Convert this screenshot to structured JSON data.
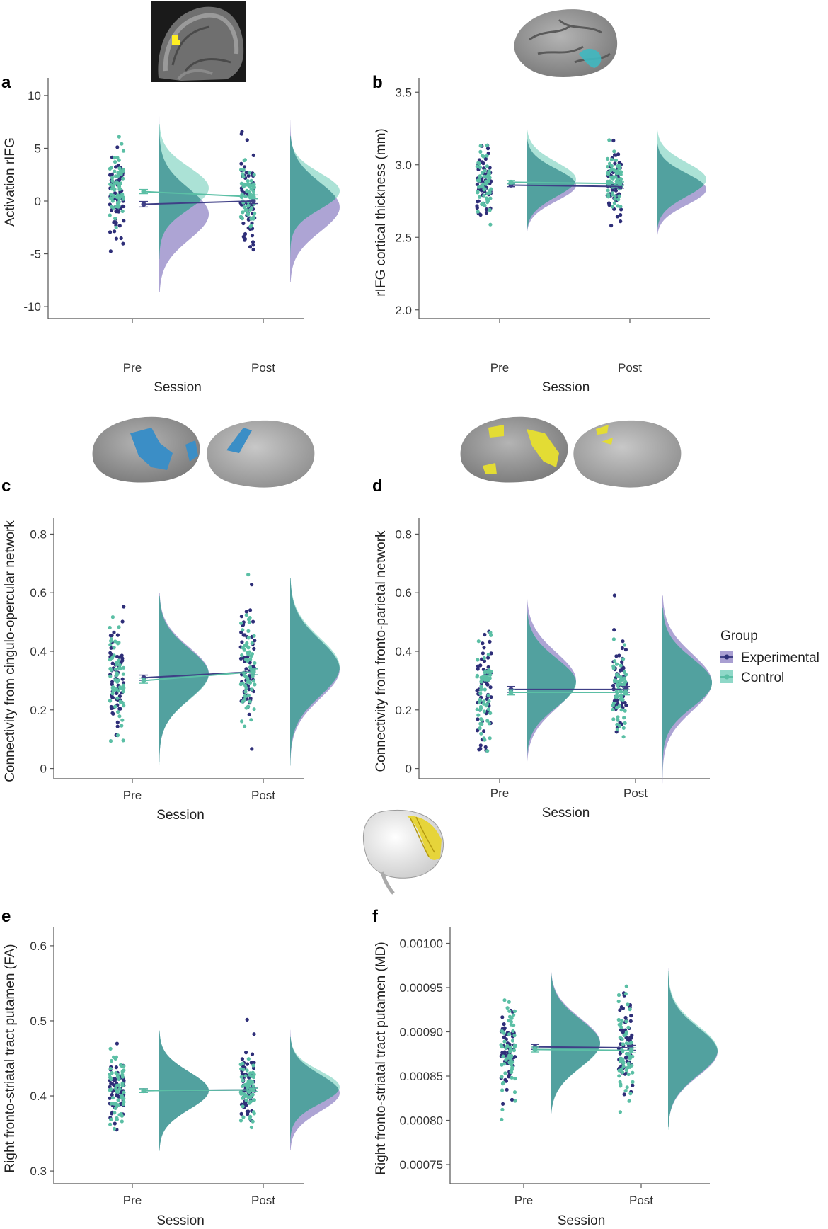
{
  "figure": {
    "legend": {
      "title": "Group",
      "entries": [
        {
          "label": "Experimental",
          "color": "#3f3f86"
        },
        {
          "label": "Control",
          "color": "#5bbfa5"
        }
      ],
      "placement": "right"
    },
    "colors": {
      "experimental_point": "#2e2e78",
      "experimental_fill": "#a99fd2",
      "control_point": "#5bbfa5",
      "control_fill": "#8fd8c8",
      "overlap_fill": "#4e9e9c",
      "axis": "#555555"
    },
    "brain_images": [
      {
        "name": "mri-sagittal-rIFG-activation",
        "panel": "a"
      },
      {
        "name": "cortical-surface-rIFG-region",
        "panel": "b"
      },
      {
        "name": "cingulo-opercular-network-surface",
        "panel": "c"
      },
      {
        "name": "fronto-parietal-network-surface",
        "panel": "d"
      },
      {
        "name": "fronto-striatal-tract-3d",
        "panel": "e-f"
      }
    ]
  },
  "chart_data": [
    {
      "panel": "a",
      "type": "scatter",
      "title": "",
      "xlabel": "Session",
      "ylabel": "Activation rIFG",
      "categories": [
        "Pre",
        "Post"
      ],
      "ylim": [
        -11,
        11
      ],
      "yticks": [
        -10,
        -5,
        0,
        5,
        10
      ],
      "ytick_labels": [
        "-10",
        "-5",
        "0",
        "5",
        "10"
      ],
      "series": [
        {
          "name": "Experimental",
          "means": [
            -0.3,
            0.0
          ],
          "sd": [
            2.6,
            2.4
          ],
          "skew": [
            -0.5,
            -0.3
          ]
        },
        {
          "name": "Control",
          "means": [
            0.9,
            0.4
          ],
          "sd": [
            2.0,
            1.8
          ],
          "skew": [
            0.2,
            0.4
          ]
        }
      ],
      "grid": false
    },
    {
      "panel": "b",
      "type": "scatter",
      "title": "",
      "xlabel": "Session",
      "ylabel": "rIFG cortical thickness (mm)",
      "categories": [
        "Pre",
        "Post"
      ],
      "ylim": [
        1.95,
        3.55
      ],
      "yticks": [
        2.0,
        2.5,
        3.0,
        3.5
      ],
      "ytick_labels": [
        "2.0",
        "2.5",
        "3.0",
        "3.5"
      ],
      "series": [
        {
          "name": "Experimental",
          "means": [
            2.86,
            2.85
          ],
          "sd": [
            0.11,
            0.11
          ],
          "skew": [
            0.0,
            -0.2
          ]
        },
        {
          "name": "Control",
          "means": [
            2.88,
            2.87
          ],
          "sd": [
            0.12,
            0.12
          ],
          "skew": [
            0.2,
            0.3
          ]
        }
      ],
      "grid": false
    },
    {
      "panel": "c",
      "type": "scatter",
      "title": "",
      "xlabel": "Session",
      "ylabel": "Connectivity from cingulo-opercular network",
      "categories": [
        "Pre",
        "Post"
      ],
      "ylim": [
        -0.03,
        0.83
      ],
      "yticks": [
        0,
        0.2,
        0.4,
        0.6,
        0.8
      ],
      "ytick_labels": [
        "0",
        "0.2",
        "0.4",
        "0.6",
        "0.8"
      ],
      "series": [
        {
          "name": "Experimental",
          "means": [
            0.31,
            0.33
          ],
          "sd": [
            0.09,
            0.1
          ],
          "skew": [
            0.2,
            0.1
          ]
        },
        {
          "name": "Control",
          "means": [
            0.3,
            0.33
          ],
          "sd": [
            0.09,
            0.1
          ],
          "skew": [
            0.3,
            0.2
          ]
        }
      ],
      "grid": false
    },
    {
      "panel": "d",
      "type": "scatter",
      "title": "",
      "xlabel": "Session",
      "ylabel": "Connectivity from fronto-parietal network",
      "categories": [
        "Pre",
        "Post"
      ],
      "ylim": [
        -0.03,
        0.83
      ],
      "yticks": [
        0,
        0.2,
        0.4,
        0.6,
        0.8
      ],
      "ytick_labels": [
        "0",
        "0.2",
        "0.4",
        "0.6",
        "0.8"
      ],
      "series": [
        {
          "name": "Experimental",
          "means": [
            0.27,
            0.27
          ],
          "sd": [
            0.1,
            0.1
          ],
          "skew": [
            0.4,
            0.3
          ]
        },
        {
          "name": "Control",
          "means": [
            0.26,
            0.26
          ],
          "sd": [
            0.09,
            0.09
          ],
          "skew": [
            0.5,
            0.5
          ]
        }
      ],
      "grid": false
    },
    {
      "panel": "e",
      "type": "scatter",
      "title": "",
      "xlabel": "Session",
      "ylabel": "Right fronto-striatal tract putamen (FA)",
      "categories": [
        "Pre",
        "Post"
      ],
      "ylim": [
        0.285,
        0.615
      ],
      "yticks": [
        0.3,
        0.4,
        0.5,
        0.6
      ],
      "ytick_labels": [
        "0.3",
        "0.4",
        "0.5",
        "0.6"
      ],
      "series": [
        {
          "name": "Experimental",
          "means": [
            0.407,
            0.408
          ],
          "sd": [
            0.025,
            0.025
          ],
          "skew": [
            0.0,
            -0.2
          ]
        },
        {
          "name": "Control",
          "means": [
            0.407,
            0.408
          ],
          "sd": [
            0.025,
            0.022
          ],
          "skew": [
            0.0,
            0.2
          ]
        }
      ],
      "grid": false
    },
    {
      "panel": "f",
      "type": "scatter",
      "title": "",
      "xlabel": "Session",
      "ylabel": "Right fronto-striatal tract putamen (MD)",
      "categories": [
        "Pre",
        "Post"
      ],
      "ylim": [
        0.00073,
        0.00101
      ],
      "yticks": [
        0.00075,
        0.0008,
        0.00085,
        0.0009,
        0.00095,
        0.001
      ],
      "ytick_labels": [
        "0.00075",
        "0.00080",
        "0.00085",
        "0.00090",
        "0.00095",
        "0.00100"
      ],
      "series": [
        {
          "name": "Experimental",
          "means": [
            0.000883,
            0.000882
          ],
          "sd": [
            2.8e-05,
            2.8e-05
          ],
          "skew": [
            0.2,
            -0.2
          ]
        },
        {
          "name": "Control",
          "means": [
            0.00088,
            0.000879
          ],
          "sd": [
            2.8e-05,
            2.8e-05
          ],
          "skew": [
            0.3,
            0.0
          ]
        }
      ],
      "grid": false
    }
  ]
}
